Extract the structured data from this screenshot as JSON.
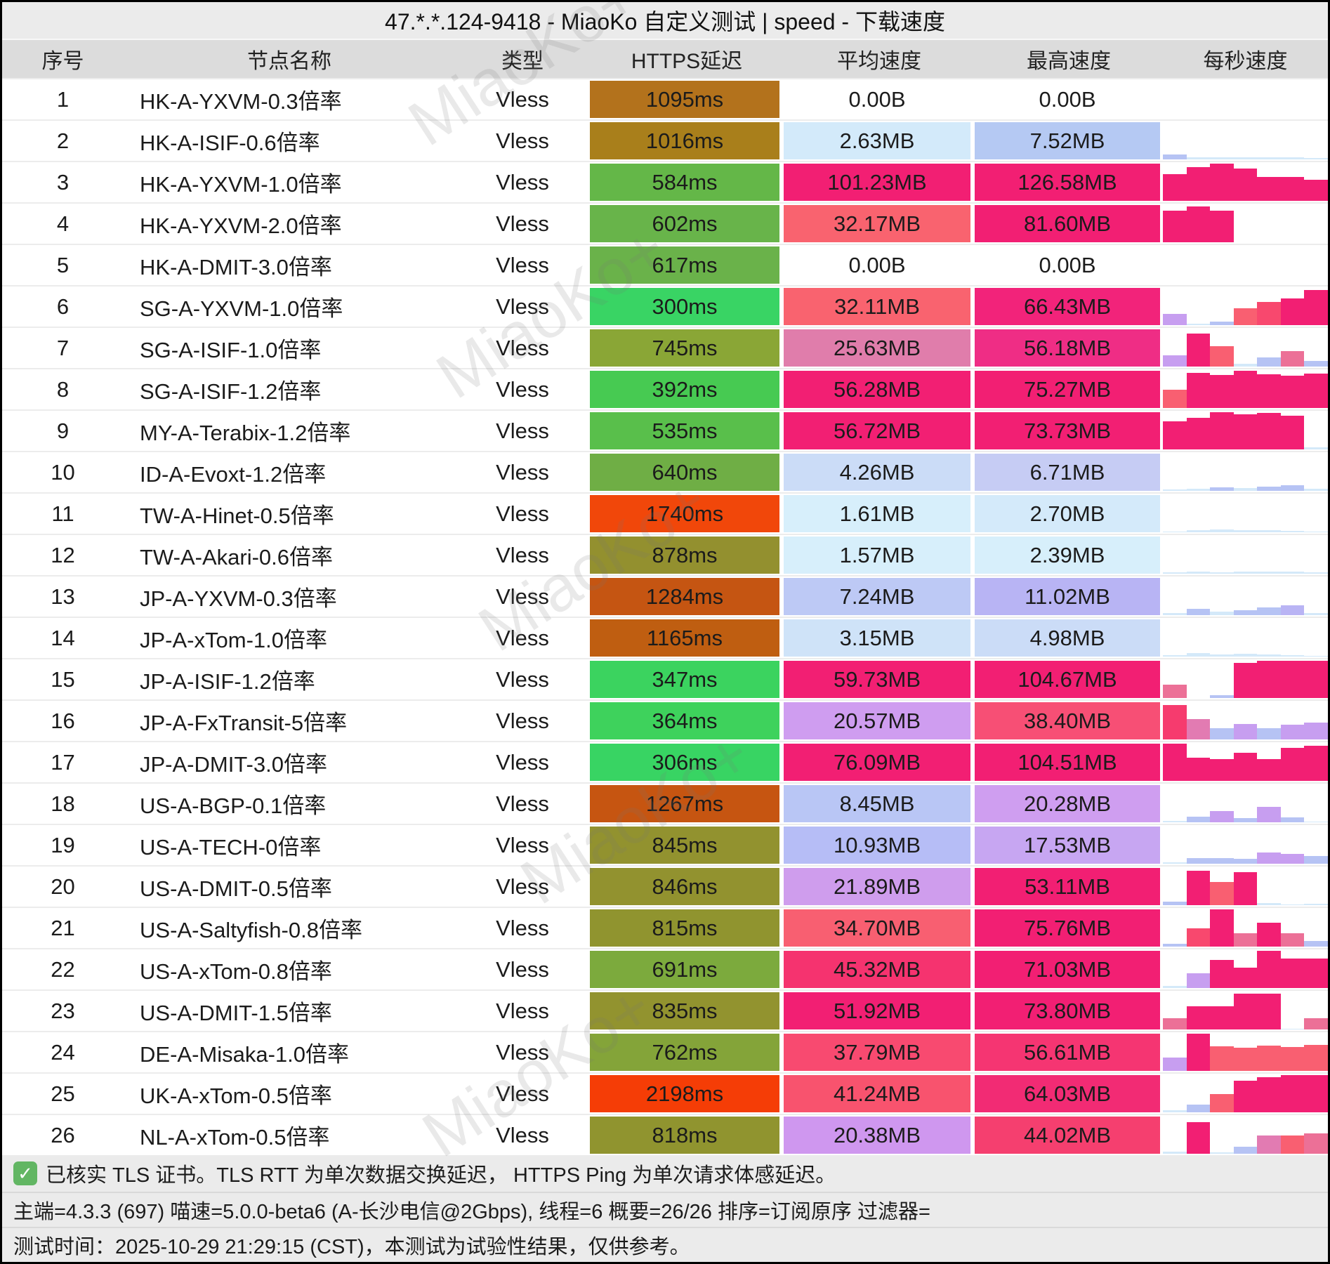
{
  "title": "47.*.*.124-9418 - MiaoKo 自定义测试 | speed - 下载速度",
  "watermark_text": "MiaoKo+",
  "headers": [
    "序号",
    "节点名称",
    "类型",
    "HTTPS延迟",
    "平均速度",
    "最高速度",
    "每秒速度"
  ],
  "rows": [
    {
      "no": "1",
      "name": "HK-A-YXVM-0.3倍率",
      "type": "Vless",
      "latency": "1095ms",
      "latency_bg": "#b3721c",
      "avg": "0.00B",
      "avg_bg": "",
      "max": "0.00B",
      "max_bg": "",
      "spark": []
    },
    {
      "no": "2",
      "name": "HK-A-ISIF-0.6倍率",
      "type": "Vless",
      "latency": "1016ms",
      "latency_bg": "#a97f1b",
      "avg": "2.63MB",
      "avg_bg": "#d3eafa",
      "max": "7.52MB",
      "max_bg": "#b5c9f3",
      "spark": [
        [
          0.13,
          "#b6c3f4"
        ],
        [
          0.05,
          "#d4e9f9"
        ],
        [
          0.06,
          "#d4e9f9"
        ],
        [
          0.05,
          "#d4e9f9"
        ],
        [
          0.06,
          "#d4e9f9"
        ],
        [
          0.05,
          "#d4e9f9"
        ],
        [
          0.03,
          "#d4e9f9"
        ]
      ]
    },
    {
      "no": "3",
      "name": "HK-A-YXVM-1.0倍率",
      "type": "Vless",
      "latency": "584ms",
      "latency_bg": "#64b748",
      "avg": "101.23MB",
      "avg_bg": "#f21f73",
      "max": "126.58MB",
      "max_bg": "#f21f73",
      "spark": [
        [
          0.72,
          "#f21f73"
        ],
        [
          0.9,
          "#f21f73"
        ],
        [
          1,
          "#f21f73"
        ],
        [
          0.86,
          "#f21f73"
        ],
        [
          0.65,
          "#f21f73"
        ],
        [
          0.65,
          "#f21f73"
        ],
        [
          0.57,
          "#f21f73"
        ]
      ]
    },
    {
      "no": "4",
      "name": "HK-A-YXVM-2.0倍率",
      "type": "Vless",
      "latency": "602ms",
      "latency_bg": "#68b44a",
      "avg": "32.17MB",
      "avg_bg": "#f9636f",
      "max": "81.60MB",
      "max_bg": "#f21f73",
      "spark": [
        [
          0.85,
          "#f21f73"
        ],
        [
          0.97,
          "#f21f73"
        ],
        [
          0.85,
          "#f21f73"
        ],
        [
          0,
          ""
        ],
        [
          0,
          ""
        ],
        [
          0,
          ""
        ],
        [
          0,
          ""
        ]
      ]
    },
    {
      "no": "5",
      "name": "HK-A-DMIT-3.0倍率",
      "type": "Vless",
      "latency": "617ms",
      "latency_bg": "#6ab24a",
      "avg": "0.00B",
      "avg_bg": "",
      "max": "0.00B",
      "max_bg": "",
      "spark": []
    },
    {
      "no": "6",
      "name": "SG-A-YXVM-1.0倍率",
      "type": "Vless",
      "latency": "300ms",
      "latency_bg": "#39d464",
      "avg": "32.11MB",
      "avg_bg": "#f9636f",
      "max": "66.43MB",
      "max_bg": "#f2237a",
      "spark": [
        [
          0.3,
          "#c79ef0"
        ],
        [
          0.04,
          "#d4e9f9"
        ],
        [
          0.1,
          "#b6c3f4"
        ],
        [
          0.45,
          "#f95f71"
        ],
        [
          0.62,
          "#f8486e"
        ],
        [
          0.72,
          "#f21f73"
        ],
        [
          0.95,
          "#f21f73"
        ]
      ]
    },
    {
      "no": "7",
      "name": "SG-A-ISIF-1.0倍率",
      "type": "Vless",
      "latency": "745ms",
      "latency_bg": "#8aa636",
      "avg": "25.63MB",
      "avg_bg": "#e07dab",
      "max": "56.18MB",
      "max_bg": "#ef2d85",
      "spark": [
        [
          0.3,
          "#c79ef0"
        ],
        [
          0.88,
          "#f21f73"
        ],
        [
          0.55,
          "#f95f71"
        ],
        [
          0.08,
          "#d4e9f9"
        ],
        [
          0.25,
          "#b6c3f4"
        ],
        [
          0.42,
          "#ec7097"
        ],
        [
          0.15,
          "#b6c3f4"
        ]
      ]
    },
    {
      "no": "8",
      "name": "SG-A-ISIF-1.2倍率",
      "type": "Vless",
      "latency": "392ms",
      "latency_bg": "#47ca52",
      "avg": "56.28MB",
      "avg_bg": "#f21f73",
      "max": "75.27MB",
      "max_bg": "#f21f73",
      "spark": [
        [
          0.5,
          "#f95f71"
        ],
        [
          0.95,
          "#f21f73"
        ],
        [
          0.88,
          "#f21f73"
        ],
        [
          1,
          "#f21f73"
        ],
        [
          0.9,
          "#f21f73"
        ],
        [
          0.87,
          "#f21f73"
        ],
        [
          0.92,
          "#f21f73"
        ]
      ]
    },
    {
      "no": "9",
      "name": "MY-A-Terabix-1.2倍率",
      "type": "Vless",
      "latency": "535ms",
      "latency_bg": "#59bf4b",
      "avg": "56.72MB",
      "avg_bg": "#f21f73",
      "max": "73.73MB",
      "max_bg": "#f21f73",
      "spark": [
        [
          0.75,
          "#f21f73"
        ],
        [
          0.85,
          "#f21f73"
        ],
        [
          1,
          "#f21f73"
        ],
        [
          0.95,
          "#f21f73"
        ],
        [
          0.98,
          "#f21f73"
        ],
        [
          0.9,
          "#f21f73"
        ],
        [
          0.05,
          "#d4e9f9"
        ]
      ]
    },
    {
      "no": "10",
      "name": "ID-A-Evoxt-1.2倍率",
      "type": "Vless",
      "latency": "640ms",
      "latency_bg": "#6fae45",
      "avg": "4.26MB",
      "avg_bg": "#cbdcf7",
      "max": "6.71MB",
      "max_bg": "#c6ccf4",
      "spark": [
        [
          0.04,
          "#d4e9f9"
        ],
        [
          0.06,
          "#d4e9f9"
        ],
        [
          0.1,
          "#b6c3f4"
        ],
        [
          0.08,
          "#d4e9f9"
        ],
        [
          0.12,
          "#b6c3f4"
        ],
        [
          0.16,
          "#b6c3f4"
        ],
        [
          0.05,
          "#d4e9f9"
        ]
      ]
    },
    {
      "no": "11",
      "name": "TW-A-Hinet-0.5倍率",
      "type": "Vless",
      "latency": "1740ms",
      "latency_bg": "#f1470a",
      "avg": "1.61MB",
      "avg_bg": "#d7effb",
      "max": "2.70MB",
      "max_bg": "#d4eafa",
      "spark": [
        [
          0.02,
          "#d4e9f9"
        ],
        [
          0.05,
          "#d4e9f9"
        ],
        [
          0.08,
          "#d4e9f9"
        ],
        [
          0.06,
          "#d4e9f9"
        ],
        [
          0.05,
          "#d4e9f9"
        ],
        [
          0.03,
          "#d4e9f9"
        ],
        [
          0.02,
          "#d4e9f9"
        ]
      ]
    },
    {
      "no": "12",
      "name": "TW-A-Akari-0.6倍率",
      "type": "Vless",
      "latency": "878ms",
      "latency_bg": "#93902f",
      "avg": "1.57MB",
      "avg_bg": "#d7effb",
      "max": "2.39MB",
      "max_bg": "#d7effb",
      "spark": [
        [
          0.03,
          "#d4e9f9"
        ],
        [
          0.05,
          "#d4e9f9"
        ],
        [
          0.04,
          "#d4e9f9"
        ],
        [
          0.05,
          "#d4e9f9"
        ],
        [
          0.06,
          "#d4e9f9"
        ],
        [
          0.05,
          "#d4e9f9"
        ],
        [
          0.04,
          "#d4e9f9"
        ]
      ]
    },
    {
      "no": "13",
      "name": "JP-A-YXVM-0.3倍率",
      "type": "Vless",
      "latency": "1284ms",
      "latency_bg": "#c55512",
      "avg": "7.24MB",
      "avg_bg": "#bdc9f5",
      "max": "11.02MB",
      "max_bg": "#b8b4f4",
      "spark": [
        [
          0.05,
          "#d4e9f9"
        ],
        [
          0.17,
          "#b6c3f4"
        ],
        [
          0.1,
          "#d4e9f9"
        ],
        [
          0.13,
          "#b6c3f4"
        ],
        [
          0.2,
          "#b6c3f4"
        ],
        [
          0.26,
          "#b9b4f4"
        ],
        [
          0.06,
          "#d4e9f9"
        ]
      ]
    },
    {
      "no": "14",
      "name": "JP-A-xTom-1.0倍率",
      "type": "Vless",
      "latency": "1165ms",
      "latency_bg": "#bf5e11",
      "avg": "3.15MB",
      "avg_bg": "#cfe3f8",
      "max": "4.98MB",
      "max_bg": "#cbdcf7",
      "spark": [
        [
          0.03,
          "#d4e9f9"
        ],
        [
          0.09,
          "#d4e9f9"
        ],
        [
          0.06,
          "#d4e9f9"
        ],
        [
          0.08,
          "#d4e9f9"
        ],
        [
          0.05,
          "#d4e9f9"
        ],
        [
          0.04,
          "#d4e9f9"
        ],
        [
          0.02,
          "#d4e9f9"
        ]
      ]
    },
    {
      "no": "15",
      "name": "JP-A-ISIF-1.2倍率",
      "type": "Vless",
      "latency": "347ms",
      "latency_bg": "#3bd35f",
      "avg": "59.73MB",
      "avg_bg": "#f21f73",
      "max": "104.67MB",
      "max_bg": "#f21f73",
      "spark": [
        [
          0.35,
          "#ec7097"
        ],
        [
          0,
          ""
        ],
        [
          0.08,
          "#b6c3f4"
        ],
        [
          0.95,
          "#f21f73"
        ],
        [
          1,
          "#f21f73"
        ],
        [
          1,
          "#f21f73"
        ],
        [
          1,
          "#f21f73"
        ]
      ]
    },
    {
      "no": "16",
      "name": "JP-A-FxTransit-5倍率",
      "type": "Vless",
      "latency": "364ms",
      "latency_bg": "#3ed25c",
      "avg": "20.57MB",
      "avg_bg": "#cf9df0",
      "max": "38.40MB",
      "max_bg": "#f74f75",
      "spark": [
        [
          0.92,
          "#f63b6e"
        ],
        [
          0.55,
          "#e27bb2"
        ],
        [
          0.3,
          "#b6c3f4"
        ],
        [
          0.42,
          "#c79ef0"
        ],
        [
          0.3,
          "#b6c3f4"
        ],
        [
          0.4,
          "#c79ef0"
        ],
        [
          0.45,
          "#c79ef0"
        ]
      ]
    },
    {
      "no": "17",
      "name": "JP-A-DMIT-3.0倍率",
      "type": "Vless",
      "latency": "306ms",
      "latency_bg": "#38d463",
      "avg": "76.09MB",
      "avg_bg": "#f21f73",
      "max": "104.51MB",
      "max_bg": "#f21f73",
      "spark": [
        [
          1,
          "#f21f73"
        ],
        [
          0.62,
          "#f21f73"
        ],
        [
          0.58,
          "#f21f73"
        ],
        [
          0.75,
          "#f21f73"
        ],
        [
          0.58,
          "#f21f73"
        ],
        [
          0.88,
          "#f21f73"
        ],
        [
          0.95,
          "#f21f73"
        ]
      ]
    },
    {
      "no": "18",
      "name": "US-A-BGP-0.1倍率",
      "type": "Vless",
      "latency": "1267ms",
      "latency_bg": "#c65511",
      "avg": "8.45MB",
      "avg_bg": "#b9c6f5",
      "max": "20.28MB",
      "max_bg": "#cf9ef0",
      "spark": [
        [
          0.04,
          "#d4e9f9"
        ],
        [
          0.16,
          "#b6c3f4"
        ],
        [
          0.3,
          "#c79ef0"
        ],
        [
          0.12,
          "#b6c3f4"
        ],
        [
          0.42,
          "#c79ef0"
        ],
        [
          0.13,
          "#b6c3f4"
        ],
        [
          0.02,
          "#d4e9f9"
        ]
      ]
    },
    {
      "no": "19",
      "name": "US-A-TECH-0倍率",
      "type": "Vless",
      "latency": "845ms",
      "latency_bg": "#92922f",
      "avg": "10.93MB",
      "avg_bg": "#b6bdf6",
      "max": "17.53MB",
      "max_bg": "#c7a6f2",
      "spark": [
        [
          0.04,
          "#d4e9f9"
        ],
        [
          0.16,
          "#b6c3f4"
        ],
        [
          0.15,
          "#b6c3f4"
        ],
        [
          0.13,
          "#b6c3f4"
        ],
        [
          0.3,
          "#c79ef0"
        ],
        [
          0.26,
          "#c79ef0"
        ],
        [
          0.2,
          "#b6c3f4"
        ]
      ]
    },
    {
      "no": "20",
      "name": "US-A-DMIT-0.5倍率",
      "type": "Vless",
      "latency": "846ms",
      "latency_bg": "#92922f",
      "avg": "21.89MB",
      "avg_bg": "#cf9ded",
      "max": "53.11MB",
      "max_bg": "#f21f73",
      "spark": [
        [
          0.1,
          "#b6c3f4"
        ],
        [
          0.92,
          "#f21f73"
        ],
        [
          0.62,
          "#f95f71"
        ],
        [
          0.88,
          "#f21f73"
        ],
        [
          0.05,
          "#d4e9f9"
        ],
        [
          0.02,
          "#d4e9f9"
        ],
        [
          0.04,
          "#d4e9f9"
        ]
      ]
    },
    {
      "no": "21",
      "name": "US-A-Saltyfish-0.8倍率",
      "type": "Vless",
      "latency": "815ms",
      "latency_bg": "#90942f",
      "avg": "34.70MB",
      "avg_bg": "#f85f71",
      "max": "75.76MB",
      "max_bg": "#f21f73",
      "spark": [
        [
          0.07,
          "#b6c3f4"
        ],
        [
          0.5,
          "#f8486e"
        ],
        [
          1,
          "#f21f73"
        ],
        [
          0.35,
          "#ec7097"
        ],
        [
          0.65,
          "#f21f73"
        ],
        [
          0.35,
          "#ec7097"
        ],
        [
          0.15,
          "#b6c3f4"
        ]
      ]
    },
    {
      "no": "22",
      "name": "US-A-xTom-0.8倍率",
      "type": "Vless",
      "latency": "691ms",
      "latency_bg": "#7caa3d",
      "avg": "45.32MB",
      "avg_bg": "#f5336f",
      "max": "71.03MB",
      "max_bg": "#f21f73",
      "spark": [
        [
          0.05,
          "#d4e9f9"
        ],
        [
          0.4,
          "#c79ef0"
        ],
        [
          0.75,
          "#f21f73"
        ],
        [
          0.55,
          "#f21f73"
        ],
        [
          1,
          "#f21f73"
        ],
        [
          0.8,
          "#f21f73"
        ],
        [
          0.8,
          "#f21f73"
        ]
      ]
    },
    {
      "no": "23",
      "name": "US-A-DMIT-1.5倍率",
      "type": "Vless",
      "latency": "835ms",
      "latency_bg": "#92932f",
      "avg": "51.92MB",
      "avg_bg": "#f21f73",
      "max": "73.80MB",
      "max_bg": "#f21f73",
      "spark": [
        [
          0.3,
          "#ec7097"
        ],
        [
          0.63,
          "#f21f73"
        ],
        [
          0.63,
          "#f21f73"
        ],
        [
          0.97,
          "#f21f73"
        ],
        [
          0.97,
          "#f21f73"
        ],
        [
          0.02,
          "#d4e9f9"
        ],
        [
          0.3,
          "#ec7097"
        ]
      ]
    },
    {
      "no": "24",
      "name": "DE-A-Misaka-1.0倍率",
      "type": "Vless",
      "latency": "762ms",
      "latency_bg": "#84a439",
      "avg": "37.79MB",
      "avg_bg": "#f84a70",
      "max": "56.61MB",
      "max_bg": "#f53572",
      "spark": [
        [
          0.35,
          "#c79ef0"
        ],
        [
          1,
          "#f21f73"
        ],
        [
          0.66,
          "#f95f71"
        ],
        [
          0.63,
          "#f95f71"
        ],
        [
          0.68,
          "#f95f71"
        ],
        [
          0.65,
          "#f95f71"
        ],
        [
          0.7,
          "#f95f71"
        ]
      ]
    },
    {
      "no": "25",
      "name": "UK-A-xTom-0.5倍率",
      "type": "Vless",
      "latency": "2198ms",
      "latency_bg": "#f53d06",
      "avg": "41.24MB",
      "avg_bg": "#f8536e",
      "max": "64.03MB",
      "max_bg": "#f22b74",
      "spark": [
        [
          0.05,
          "#d4e9f9"
        ],
        [
          0.2,
          "#b6c3f4"
        ],
        [
          0.5,
          "#f95f71"
        ],
        [
          0.85,
          "#f21f73"
        ],
        [
          0.95,
          "#f21f73"
        ],
        [
          1,
          "#f21f73"
        ],
        [
          1,
          "#f21f73"
        ]
      ]
    },
    {
      "no": "26",
      "name": "NL-A-xTom-0.5倍率",
      "type": "Vless",
      "latency": "818ms",
      "latency_bg": "#90942f",
      "avg": "20.38MB",
      "avg_bg": "#cf97ef",
      "max": "44.02MB",
      "max_bg": "#f53f6f",
      "spark": [
        [
          0.05,
          "#d4e9f9"
        ],
        [
          0.85,
          "#f21f73"
        ],
        [
          0.04,
          "#d4e9f9"
        ],
        [
          0.18,
          "#b6c3f4"
        ],
        [
          0.5,
          "#e27bb2"
        ],
        [
          0.5,
          "#f95f71"
        ],
        [
          0.55,
          "#ec7097"
        ]
      ]
    }
  ],
  "footer": {
    "check_icon": "✓",
    "tls_note": "已核实 TLS 证书。TLS RTT 为单次数据交换延迟， HTTPS Ping 为单次请求体感延迟。",
    "meta": "主端=4.3.3 (697) 喵速=5.0.0-beta6 (A-长沙电信@2Gbps), 线程=6 概要=26/26 排序=订阅原序 过滤器=",
    "time": "测试时间：2025-10-29 21:29:15 (CST)，本测试为试验性结果，仅供参考。"
  }
}
